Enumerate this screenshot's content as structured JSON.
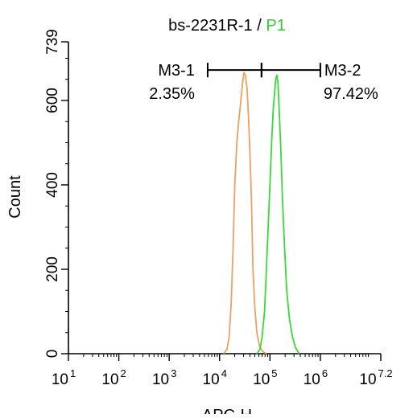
{
  "chart_data": {
    "type": "histogram",
    "title": {
      "sample": "bs-2231R-1",
      "separator": " / ",
      "gate": "P1",
      "sample_color": "#000000",
      "gate_color": "#33cc33"
    },
    "xlabel": "APC-H",
    "ylabel": "Count",
    "x_scale": "log",
    "xlim": [
      10,
      15848931.92
    ],
    "ylim": [
      0,
      739
    ],
    "x_ticks": [
      {
        "base": "10",
        "exp": "1",
        "value": 10
      },
      {
        "base": "10",
        "exp": "2",
        "value": 100
      },
      {
        "base": "10",
        "exp": "3",
        "value": 1000
      },
      {
        "base": "10",
        "exp": "4",
        "value": 10000
      },
      {
        "base": "10",
        "exp": "5",
        "value": 100000
      },
      {
        "base": "10",
        "exp": "6",
        "value": 1000000
      },
      {
        "base": "10",
        "exp": "7.2",
        "value": 15848931.92
      }
    ],
    "y_ticks": [
      {
        "label": "0",
        "value": 0
      },
      {
        "label": "200",
        "value": 200
      },
      {
        "label": "400",
        "value": 400
      },
      {
        "label": "600",
        "value": 600
      },
      {
        "label": "739",
        "value": 739
      }
    ],
    "series": [
      {
        "color": "#f0a060",
        "points": [
          [
            12000,
            0
          ],
          [
            14000,
            10
          ],
          [
            15500,
            40
          ],
          [
            17000,
            120
          ],
          [
            18500,
            250
          ],
          [
            20000,
            400
          ],
          [
            22000,
            500
          ],
          [
            24000,
            550
          ],
          [
            26500,
            600
          ],
          [
            28500,
            640
          ],
          [
            30500,
            666
          ],
          [
            32500,
            660
          ],
          [
            35000,
            630
          ],
          [
            37500,
            560
          ],
          [
            40000,
            480
          ],
          [
            43000,
            360
          ],
          [
            46000,
            200
          ],
          [
            50000,
            110
          ],
          [
            55000,
            50
          ],
          [
            62000,
            18
          ],
          [
            72000,
            5
          ],
          [
            85000,
            0
          ]
        ]
      },
      {
        "color": "#33dd33",
        "points": [
          [
            55000,
            0
          ],
          [
            63000,
            10
          ],
          [
            70000,
            40
          ],
          [
            78000,
            100
          ],
          [
            85000,
            200
          ],
          [
            92000,
            300
          ],
          [
            100000,
            400
          ],
          [
            108000,
            500
          ],
          [
            116000,
            580
          ],
          [
            124000,
            620
          ],
          [
            130000,
            650
          ],
          [
            137000,
            660
          ],
          [
            145000,
            640
          ],
          [
            155000,
            560
          ],
          [
            165000,
            480
          ],
          [
            178000,
            360
          ],
          [
            195000,
            250
          ],
          [
            215000,
            150
          ],
          [
            245000,
            80
          ],
          [
            280000,
            40
          ],
          [
            320000,
            15
          ],
          [
            380000,
            0
          ]
        ]
      }
    ],
    "gates": [
      {
        "name": "M3-1",
        "percent": "2.35%",
        "range": [
          5800,
          68000
        ]
      },
      {
        "name": "M3-2",
        "percent": "97.42%",
        "range": [
          68000,
          1000000
        ]
      }
    ],
    "gate_y": 672
  }
}
